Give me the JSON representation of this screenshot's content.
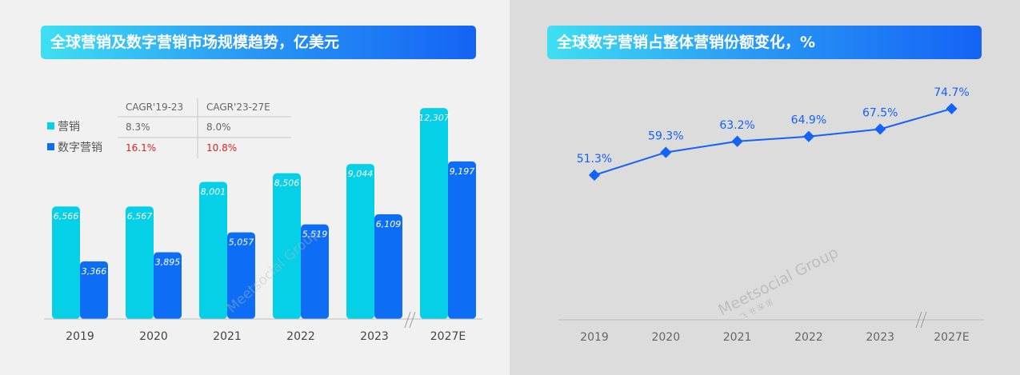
{
  "left_panel": {
    "title": "全球营销及数字营销市场规模趋势，亿美元"
  },
  "right_panel": {
    "title": "全球数字营销占整体营销份额变化，%"
  },
  "chart_data": [
    {
      "type": "bar",
      "title": "全球营销及数字营销市场规模趋势，亿美元",
      "categories": [
        "2019",
        "2020",
        "2021",
        "2022",
        "2023",
        "2027E"
      ],
      "axis_break_before": "2027E",
      "series": [
        {
          "name": "营销",
          "color": "#06cfe8",
          "values": [
            6566,
            6567,
            8001,
            8506,
            9044,
            12307
          ],
          "labels": [
            "6,566",
            "6,567",
            "8,001",
            "8,506",
            "9,044",
            "12,307"
          ]
        },
        {
          "name": "数字营销",
          "color": "#0d6ef5",
          "values": [
            3366,
            3895,
            5057,
            5519,
            6109,
            9197
          ],
          "labels": [
            "3,366",
            "3,895",
            "5,057",
            "5,519",
            "6,109",
            "9,197"
          ]
        }
      ],
      "ylim": [
        0,
        12500
      ],
      "legend": "top-left",
      "cagr_table": {
        "headers": [
          "CAGR'19-23",
          "CAGR'23-27E"
        ],
        "rows": [
          {
            "series": "营销",
            "values": [
              "8.3%",
              "8.0%"
            ],
            "color": "#666666"
          },
          {
            "series": "数字营销",
            "values": [
              "16.1%",
              "10.8%"
            ],
            "color": "#e02020"
          }
        ]
      }
    },
    {
      "type": "line",
      "title": "全球数字营销占整体营销份额变化，%",
      "categories": [
        "2019",
        "2020",
        "2021",
        "2022",
        "2023",
        "2027E"
      ],
      "axis_break_before": "2027E",
      "series": [
        {
          "name": "",
          "color": "#1463f5",
          "values": [
            51.3,
            59.3,
            63.2,
            64.9,
            67.5,
            74.7
          ],
          "labels": [
            "51.3%",
            "59.3%",
            "63.2%",
            "64.9%",
            "67.5%",
            "74.7%"
          ]
        }
      ],
      "ylim": [
        40,
        80
      ]
    }
  ],
  "watermark": {
    "text": "Meetsocial Group",
    "sub": "飞 书 深 诺"
  }
}
